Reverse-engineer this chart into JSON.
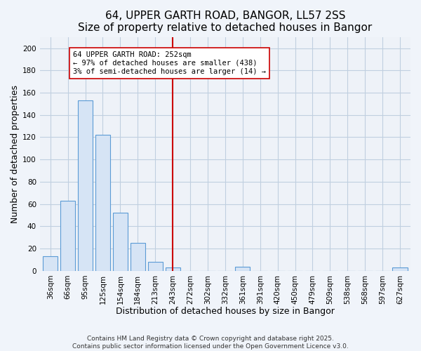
{
  "title": "64, UPPER GARTH ROAD, BANGOR, LL57 2SS",
  "subtitle": "Size of property relative to detached houses in Bangor",
  "xlabel": "Distribution of detached houses by size in Bangor",
  "ylabel": "Number of detached properties",
  "bar_labels": [
    "36sqm",
    "66sqm",
    "95sqm",
    "125sqm",
    "154sqm",
    "184sqm",
    "213sqm",
    "243sqm",
    "272sqm",
    "302sqm",
    "332sqm",
    "361sqm",
    "391sqm",
    "420sqm",
    "450sqm",
    "479sqm",
    "509sqm",
    "538sqm",
    "568sqm",
    "597sqm",
    "627sqm"
  ],
  "bar_heights": [
    13,
    63,
    153,
    122,
    52,
    25,
    8,
    3,
    0,
    0,
    0,
    4,
    0,
    0,
    0,
    0,
    0,
    0,
    0,
    0,
    3
  ],
  "bar_color": "#d6e4f5",
  "bar_edge_color": "#5b9bd5",
  "vline_x_index": 7,
  "vline_color": "#cc0000",
  "ylim": [
    0,
    210
  ],
  "yticks": [
    0,
    20,
    40,
    60,
    80,
    100,
    120,
    140,
    160,
    180,
    200
  ],
  "annotation_title": "64 UPPER GARTH ROAD: 252sqm",
  "annotation_line1": "← 97% of detached houses are smaller (438)",
  "annotation_line2": "3% of semi-detached houses are larger (14) →",
  "footer1": "Contains HM Land Registry data © Crown copyright and database right 2025.",
  "footer2": "Contains public sector information licensed under the Open Government Licence v3.0.",
  "fig_bg_color": "#f0f4fa",
  "plot_bg_color": "#eef2f8",
  "grid_color": "#c0cfe0",
  "title_fontsize": 11,
  "subtitle_fontsize": 9.5,
  "axis_label_fontsize": 9,
  "tick_fontsize": 7.5,
  "annotation_fontsize": 7.5,
  "footer_fontsize": 6.5
}
